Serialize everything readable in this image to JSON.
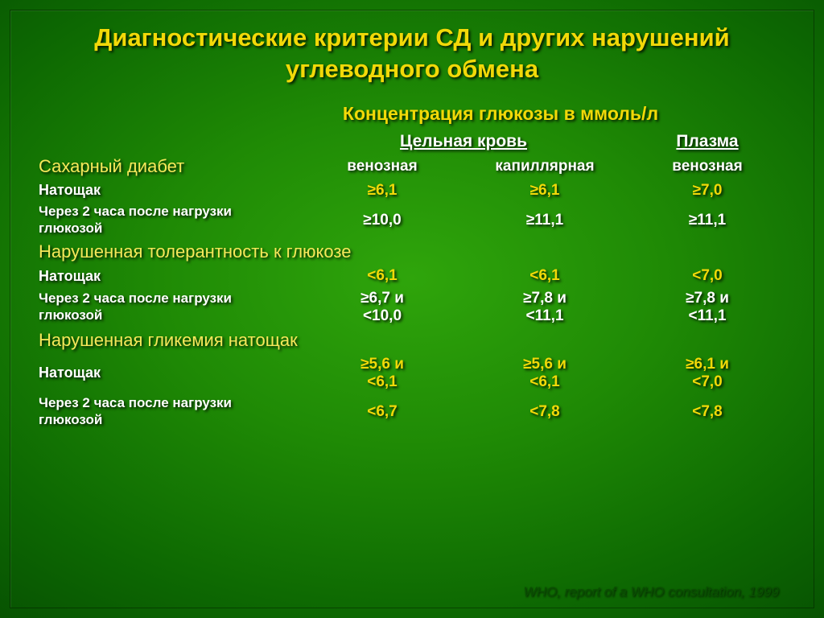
{
  "colors": {
    "title": "#f2d908",
    "subtitle": "#f2d908",
    "section": "#f6e85a",
    "white": "#ffffff",
    "citation": "#0a4e02"
  },
  "title": "Диагностические критерии СД и других нарушений углеводного обмена",
  "subtitle": "Концентрация глюкозы в ммоль/л",
  "headers": {
    "group_blood": "Цельная кровь",
    "group_plasma": "Плазма",
    "col1": "венозная",
    "col2": "капиллярная",
    "col3": "венозная"
  },
  "sections": [
    {
      "name": "Сахарный диабет",
      "rows": [
        {
          "label": "Натощак",
          "bold": true,
          "v1": [
            "≥6,1"
          ],
          "v2": [
            "≥6,1"
          ],
          "v3": [
            "≥7,0"
          ],
          "vcolor": "#f2d908"
        },
        {
          "label": "Через 2 часа после нагрузки глюкозой",
          "bold": false,
          "v1": [
            "≥10,0"
          ],
          "v2": [
            "≥11,1"
          ],
          "v3": [
            "≥11,1"
          ],
          "vcolor": "#ffffff"
        }
      ]
    },
    {
      "name": "Нарушенная толерантность к глюкозе",
      "rows": [
        {
          "label": "Натощак",
          "bold": true,
          "v1": [
            "<6,1"
          ],
          "v2": [
            "<6,1"
          ],
          "v3": [
            "<7,0"
          ],
          "vcolor": "#f2d908"
        },
        {
          "label": "Через 2 часа после нагрузки глюкозой",
          "bold": false,
          "v1": [
            "≥6,7 и",
            "<10,0"
          ],
          "v2": [
            "≥7,8  и",
            "<11,1"
          ],
          "v3": [
            "≥7,8 и",
            "<11,1"
          ],
          "vcolor": "#ffffff"
        }
      ]
    },
    {
      "name": "Нарушенная гликемия натощак",
      "rows": [
        {
          "label": "Натощак",
          "bold": true,
          "v1": [
            "≥5,6  и",
            "<6,1"
          ],
          "v2": [
            "≥5,6 и",
            "<6,1"
          ],
          "v3": [
            "≥6,1 и",
            "<7,0"
          ],
          "vcolor": "#f2d908"
        },
        {
          "label": "Через 2 часа после нагрузки глюкозой",
          "bold": false,
          "v1": [
            "<6,7"
          ],
          "v2": [
            "<7,8"
          ],
          "v3": [
            "<7,8"
          ],
          "vcolor": "#f2d908"
        }
      ]
    }
  ],
  "citation": "WHO, report of a WHO consultation, 1999"
}
